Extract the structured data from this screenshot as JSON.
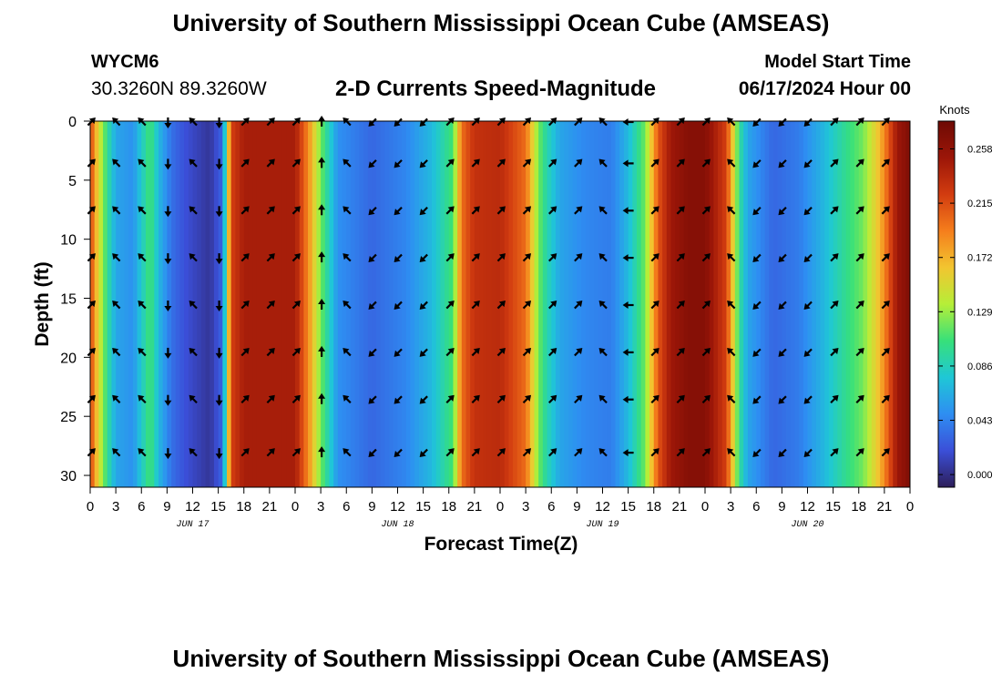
{
  "page": {
    "title": "University of Southern Mississippi Ocean Cube (AMSEAS)",
    "title_repeat": "University of Southern Mississippi Ocean Cube (AMSEAS)",
    "station_id": "WYCM6",
    "coordinates": "30.3260N  89.3260W",
    "subtitle": "2-D Currents Speed-Magnitude",
    "model_start_label": "Model Start Time",
    "model_start_value": "06/17/2024 Hour 00"
  },
  "chart_data": {
    "type": "heatmap",
    "title": "2-D Currents Speed-Magnitude",
    "xlabel": "Forecast Time(Z)",
    "ylabel": "Depth (ft)",
    "x_hours_range": [
      0,
      96
    ],
    "y_range": [
      0,
      31
    ],
    "y_inverted": true,
    "x_ticks": [
      {
        "h": 0,
        "label": "0"
      },
      {
        "h": 3,
        "label": "3"
      },
      {
        "h": 6,
        "label": "6"
      },
      {
        "h": 9,
        "label": "9"
      },
      {
        "h": 12,
        "label": "12"
      },
      {
        "h": 15,
        "label": "15"
      },
      {
        "h": 18,
        "label": "18"
      },
      {
        "h": 21,
        "label": "21"
      },
      {
        "h": 24,
        "label": "0"
      },
      {
        "h": 27,
        "label": "3"
      },
      {
        "h": 30,
        "label": "6"
      },
      {
        "h": 33,
        "label": "9"
      },
      {
        "h": 36,
        "label": "12"
      },
      {
        "h": 39,
        "label": "15"
      },
      {
        "h": 42,
        "label": "18"
      },
      {
        "h": 45,
        "label": "21"
      },
      {
        "h": 48,
        "label": "0"
      },
      {
        "h": 51,
        "label": "3"
      },
      {
        "h": 54,
        "label": "6"
      },
      {
        "h": 57,
        "label": "9"
      },
      {
        "h": 60,
        "label": "12"
      },
      {
        "h": 63,
        "label": "15"
      },
      {
        "h": 66,
        "label": "18"
      },
      {
        "h": 69,
        "label": "21"
      },
      {
        "h": 72,
        "label": "0"
      },
      {
        "h": 75,
        "label": "3"
      },
      {
        "h": 78,
        "label": "6"
      },
      {
        "h": 81,
        "label": "9"
      },
      {
        "h": 84,
        "label": "12"
      },
      {
        "h": 87,
        "label": "15"
      },
      {
        "h": 90,
        "label": "18"
      },
      {
        "h": 93,
        "label": "21"
      },
      {
        "h": 96,
        "label": "0"
      }
    ],
    "day_labels": [
      {
        "h": 12,
        "label": "JUN 17"
      },
      {
        "h": 36,
        "label": "JUN 18"
      },
      {
        "h": 60,
        "label": "JUN 19"
      },
      {
        "h": 84,
        "label": "JUN 20"
      }
    ],
    "y_ticks": [
      {
        "v": 0,
        "label": "0"
      },
      {
        "v": 5,
        "label": "5"
      },
      {
        "v": 10,
        "label": "10"
      },
      {
        "v": 15,
        "label": "15"
      },
      {
        "v": 20,
        "label": "20"
      },
      {
        "v": 25,
        "label": "25"
      },
      {
        "v": 30,
        "label": "30"
      }
    ],
    "colorbar": {
      "label": "Knots",
      "range": [
        -0.01,
        0.28
      ],
      "ticks": [
        "0.000",
        "0.043",
        "0.086",
        "0.129",
        "0.172",
        "0.215",
        "0.258"
      ],
      "tick_values": [
        0.0,
        0.043,
        0.086,
        0.129,
        0.172,
        0.215,
        0.258
      ],
      "stops": [
        "#2d1e5a",
        "#3b4fd8",
        "#2e8ef2",
        "#1fc7d6",
        "#37e07a",
        "#b6ee38",
        "#f2c530",
        "#f57e1c",
        "#d23c10",
        "#9c1608",
        "#6e0a04"
      ]
    },
    "speed_profile_hours": [
      0,
      1,
      2,
      3,
      5,
      6,
      7,
      8,
      9.5,
      11,
      12.5,
      14,
      15.5,
      16.5,
      18,
      21,
      24,
      25.5,
      27,
      29,
      33,
      37,
      40,
      42.5,
      43.5,
      45,
      48,
      51,
      52.5,
      53.5,
      55,
      58,
      61,
      63,
      65,
      66.5,
      68,
      70,
      72,
      74.5,
      76,
      77,
      80,
      83,
      86,
      88.5,
      90.5,
      92.5,
      94.5,
      96
    ],
    "speed_profile_knots": [
      0.22,
      0.15,
      0.1,
      0.06,
      0.05,
      0.08,
      0.11,
      0.07,
      0.035,
      0.02,
      0.012,
      0.004,
      0.03,
      0.22,
      0.245,
      0.245,
      0.245,
      0.19,
      0.12,
      0.05,
      0.03,
      0.045,
      0.07,
      0.11,
      0.2,
      0.23,
      0.235,
      0.2,
      0.12,
      0.09,
      0.06,
      0.045,
      0.04,
      0.07,
      0.12,
      0.21,
      0.25,
      0.265,
      0.265,
      0.22,
      0.1,
      0.06,
      0.03,
      0.04,
      0.07,
      0.1,
      0.12,
      0.17,
      0.25,
      0.27
    ],
    "arrow_columns_hours": [
      0,
      3,
      6,
      9,
      12,
      15,
      18,
      21,
      24,
      27,
      30,
      33,
      36,
      39,
      42,
      45,
      48,
      51,
      54,
      57,
      60,
      63,
      66,
      69,
      72,
      75,
      78,
      81,
      84,
      87,
      90,
      93
    ],
    "arrow_depths_ft": [
      0,
      3.5,
      7.5,
      11.5,
      15.5,
      19.5,
      23.5,
      28
    ],
    "arrow_direction_deg_cw_from_north": [
      45,
      315,
      315,
      180,
      315,
      180,
      45,
      45,
      45,
      0,
      315,
      225,
      225,
      225,
      45,
      45,
      45,
      45,
      45,
      45,
      315,
      270,
      45,
      45,
      45,
      315,
      225,
      225,
      225,
      45,
      45,
      45
    ]
  }
}
